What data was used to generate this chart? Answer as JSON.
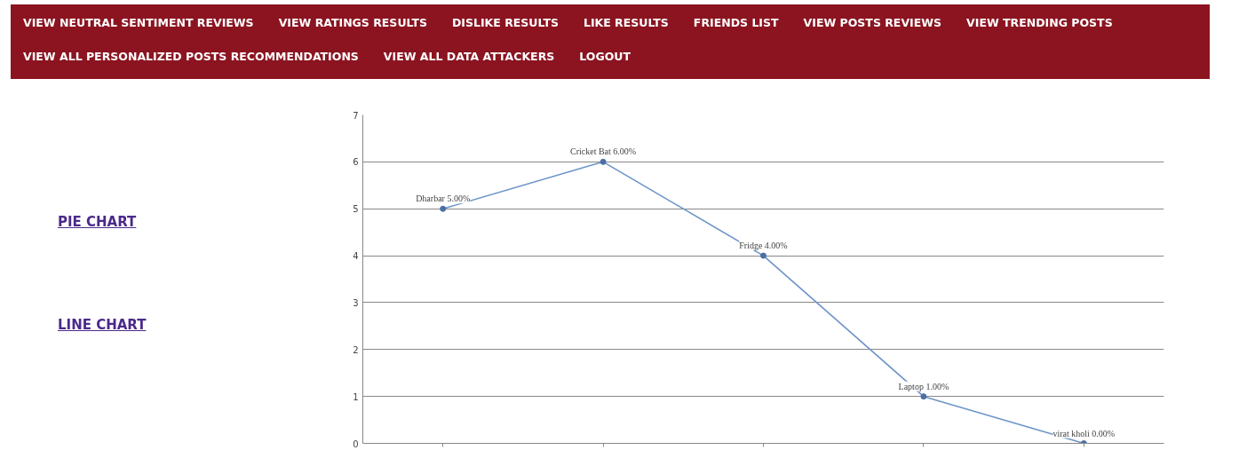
{
  "chart_data": {
    "type": "line",
    "categories": [
      null,
      null,
      null,
      null,
      null
    ],
    "series": [
      {
        "color": "#6d95c8",
        "values": [
          5,
          6,
          4,
          1,
          0
        ]
      }
    ],
    "value_labels": [
      "Dharbar 5.00%",
      "Cricket Bat 6.00%",
      "Fridge 4.00%",
      "Laptop 1.00%",
      "virat kholi 0.00%"
    ],
    "ylim": [
      0,
      7
    ],
    "yticks": [
      0,
      1,
      2,
      3,
      4,
      5,
      6,
      7
    ],
    "grid": "y",
    "marker": "circle",
    "line_style": "solid",
    "annotations": [
      "VIEW NEUTRAL SENTIMENT REVIEWS",
      "VIEW RATINGS RESULTS",
      "DISLIKE RESULTS",
      "LIKE RESULTS",
      "FRIENDS LIST",
      "VIEW POSTS REVIEWS",
      "VIEW TRENDING POSTS",
      "VIEW ALL PERSONALIZED POSTS RECOMMENDATIONS",
      "VIEW ALL DATA ATTACKERS",
      "LOGOUT",
      "PIE CHART",
      "LINE CHART"
    ]
  }
}
